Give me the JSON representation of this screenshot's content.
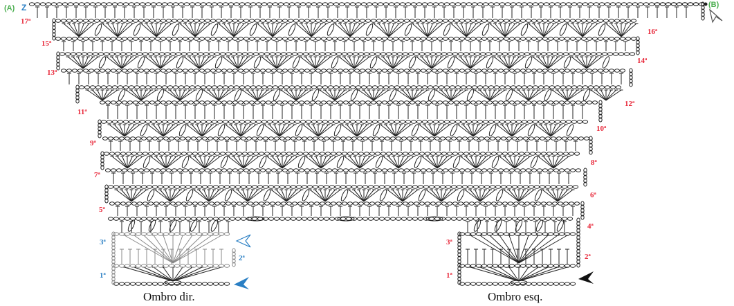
{
  "markers": {
    "a": "(A)",
    "z": "Z",
    "b": "(B)"
  },
  "rows": {
    "r17": "17ª",
    "r16": "16ª",
    "r15": "15ª",
    "r14": "14ª",
    "r13": "13ª",
    "r12": "12ª",
    "r11": "11ª",
    "r10": "10ª",
    "r9": "9ª",
    "r8": "8ª",
    "r7": "7ª",
    "r6": "6ª",
    "r5": "5ª",
    "r4": "4ª",
    "right_r3": "3ª",
    "right_r2": "2ª",
    "right_r1": "1ª",
    "left_r3": "3ª",
    "left_r2": "2ª",
    "left_r1": "1ª"
  },
  "captions": {
    "right_shoulder": "Ombro dir.",
    "left_shoulder": "Ombro esq."
  },
  "colors": {
    "row_label": "#e8283a",
    "blue": "#2a7fc4",
    "green": "#4caf50",
    "ink": "#222222"
  },
  "icons": {
    "start_arrow_right": "arrow-filled-blue-icon",
    "end_arrow_right": "arrow-outline-blue-icon",
    "start_arrow_left": "arrow-filled-black-icon",
    "end_arrow_top": "arrow-outline-grey-icon"
  }
}
